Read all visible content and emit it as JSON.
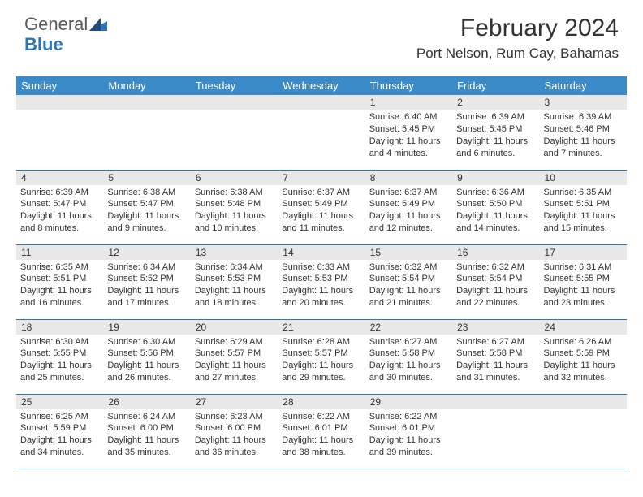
{
  "logo": {
    "text_general": "General",
    "text_blue": "Blue"
  },
  "title": "February 2024",
  "location": "Port Nelson, Rum Cay, Bahamas",
  "header_bg": "#3b8bc9",
  "header_fg": "#ffffff",
  "daynum_bg": "#e8e8e8",
  "row_border": "#2e75b6",
  "weekdays": [
    "Sunday",
    "Monday",
    "Tuesday",
    "Wednesday",
    "Thursday",
    "Friday",
    "Saturday"
  ],
  "weeks": [
    [
      null,
      null,
      null,
      null,
      {
        "n": "1",
        "sr": "Sunrise: 6:40 AM",
        "ss": "Sunset: 5:45 PM",
        "dl": "Daylight: 11 hours and 4 minutes."
      },
      {
        "n": "2",
        "sr": "Sunrise: 6:39 AM",
        "ss": "Sunset: 5:45 PM",
        "dl": "Daylight: 11 hours and 6 minutes."
      },
      {
        "n": "3",
        "sr": "Sunrise: 6:39 AM",
        "ss": "Sunset: 5:46 PM",
        "dl": "Daylight: 11 hours and 7 minutes."
      }
    ],
    [
      {
        "n": "4",
        "sr": "Sunrise: 6:39 AM",
        "ss": "Sunset: 5:47 PM",
        "dl": "Daylight: 11 hours and 8 minutes."
      },
      {
        "n": "5",
        "sr": "Sunrise: 6:38 AM",
        "ss": "Sunset: 5:47 PM",
        "dl": "Daylight: 11 hours and 9 minutes."
      },
      {
        "n": "6",
        "sr": "Sunrise: 6:38 AM",
        "ss": "Sunset: 5:48 PM",
        "dl": "Daylight: 11 hours and 10 minutes."
      },
      {
        "n": "7",
        "sr": "Sunrise: 6:37 AM",
        "ss": "Sunset: 5:49 PM",
        "dl": "Daylight: 11 hours and 11 minutes."
      },
      {
        "n": "8",
        "sr": "Sunrise: 6:37 AM",
        "ss": "Sunset: 5:49 PM",
        "dl": "Daylight: 11 hours and 12 minutes."
      },
      {
        "n": "9",
        "sr": "Sunrise: 6:36 AM",
        "ss": "Sunset: 5:50 PM",
        "dl": "Daylight: 11 hours and 14 minutes."
      },
      {
        "n": "10",
        "sr": "Sunrise: 6:35 AM",
        "ss": "Sunset: 5:51 PM",
        "dl": "Daylight: 11 hours and 15 minutes."
      }
    ],
    [
      {
        "n": "11",
        "sr": "Sunrise: 6:35 AM",
        "ss": "Sunset: 5:51 PM",
        "dl": "Daylight: 11 hours and 16 minutes."
      },
      {
        "n": "12",
        "sr": "Sunrise: 6:34 AM",
        "ss": "Sunset: 5:52 PM",
        "dl": "Daylight: 11 hours and 17 minutes."
      },
      {
        "n": "13",
        "sr": "Sunrise: 6:34 AM",
        "ss": "Sunset: 5:53 PM",
        "dl": "Daylight: 11 hours and 18 minutes."
      },
      {
        "n": "14",
        "sr": "Sunrise: 6:33 AM",
        "ss": "Sunset: 5:53 PM",
        "dl": "Daylight: 11 hours and 20 minutes."
      },
      {
        "n": "15",
        "sr": "Sunrise: 6:32 AM",
        "ss": "Sunset: 5:54 PM",
        "dl": "Daylight: 11 hours and 21 minutes."
      },
      {
        "n": "16",
        "sr": "Sunrise: 6:32 AM",
        "ss": "Sunset: 5:54 PM",
        "dl": "Daylight: 11 hours and 22 minutes."
      },
      {
        "n": "17",
        "sr": "Sunrise: 6:31 AM",
        "ss": "Sunset: 5:55 PM",
        "dl": "Daylight: 11 hours and 23 minutes."
      }
    ],
    [
      {
        "n": "18",
        "sr": "Sunrise: 6:30 AM",
        "ss": "Sunset: 5:55 PM",
        "dl": "Daylight: 11 hours and 25 minutes."
      },
      {
        "n": "19",
        "sr": "Sunrise: 6:30 AM",
        "ss": "Sunset: 5:56 PM",
        "dl": "Daylight: 11 hours and 26 minutes."
      },
      {
        "n": "20",
        "sr": "Sunrise: 6:29 AM",
        "ss": "Sunset: 5:57 PM",
        "dl": "Daylight: 11 hours and 27 minutes."
      },
      {
        "n": "21",
        "sr": "Sunrise: 6:28 AM",
        "ss": "Sunset: 5:57 PM",
        "dl": "Daylight: 11 hours and 29 minutes."
      },
      {
        "n": "22",
        "sr": "Sunrise: 6:27 AM",
        "ss": "Sunset: 5:58 PM",
        "dl": "Daylight: 11 hours and 30 minutes."
      },
      {
        "n": "23",
        "sr": "Sunrise: 6:27 AM",
        "ss": "Sunset: 5:58 PM",
        "dl": "Daylight: 11 hours and 31 minutes."
      },
      {
        "n": "24",
        "sr": "Sunrise: 6:26 AM",
        "ss": "Sunset: 5:59 PM",
        "dl": "Daylight: 11 hours and 32 minutes."
      }
    ],
    [
      {
        "n": "25",
        "sr": "Sunrise: 6:25 AM",
        "ss": "Sunset: 5:59 PM",
        "dl": "Daylight: 11 hours and 34 minutes."
      },
      {
        "n": "26",
        "sr": "Sunrise: 6:24 AM",
        "ss": "Sunset: 6:00 PM",
        "dl": "Daylight: 11 hours and 35 minutes."
      },
      {
        "n": "27",
        "sr": "Sunrise: 6:23 AM",
        "ss": "Sunset: 6:00 PM",
        "dl": "Daylight: 11 hours and 36 minutes."
      },
      {
        "n": "28",
        "sr": "Sunrise: 6:22 AM",
        "ss": "Sunset: 6:01 PM",
        "dl": "Daylight: 11 hours and 38 minutes."
      },
      {
        "n": "29",
        "sr": "Sunrise: 6:22 AM",
        "ss": "Sunset: 6:01 PM",
        "dl": "Daylight: 11 hours and 39 minutes."
      },
      null,
      null
    ]
  ]
}
